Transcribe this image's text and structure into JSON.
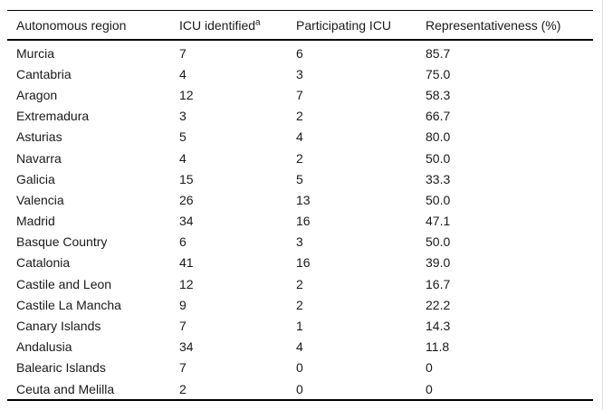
{
  "table": {
    "columns": [
      {
        "label": "Autonomous region",
        "sup": ""
      },
      {
        "label": "ICU identified",
        "sup": "a"
      },
      {
        "label": "Participating ICU",
        "sup": ""
      },
      {
        "label": "Representativeness (%)",
        "sup": ""
      }
    ],
    "rows": [
      [
        "Murcia",
        "7",
        "6",
        "85.7"
      ],
      [
        "Cantabria",
        "4",
        "3",
        "75.0"
      ],
      [
        "Aragon",
        "12",
        "7",
        "58.3"
      ],
      [
        "Extremadura",
        "3",
        "2",
        "66.7"
      ],
      [
        "Asturias",
        "5",
        "4",
        "80.0"
      ],
      [
        "Navarra",
        "4",
        "2",
        "50.0"
      ],
      [
        "Galicia",
        "15",
        "5",
        "33.3"
      ],
      [
        "Valencia",
        "26",
        "13",
        "50.0"
      ],
      [
        "Madrid",
        "34",
        "16",
        "47.1"
      ],
      [
        "Basque Country",
        "6",
        "3",
        "50.0"
      ],
      [
        "Catalonia",
        "41",
        "16",
        "39.0"
      ],
      [
        "Castile and Leon",
        "12",
        "2",
        "16.7"
      ],
      [
        "Castile La Mancha",
        "9",
        "2",
        "22.2"
      ],
      [
        "Canary Islands",
        "7",
        "1",
        "14.3"
      ],
      [
        "Andalusia",
        "34",
        "4",
        "11.8"
      ],
      [
        "Balearic Islands",
        "7",
        "0",
        "0"
      ],
      [
        "Ceuta and Melilla",
        "2",
        "0",
        "0"
      ]
    ]
  },
  "colors": {
    "text": "#1a1a1a",
    "rule": "#000000",
    "background": "#ffffff"
  }
}
